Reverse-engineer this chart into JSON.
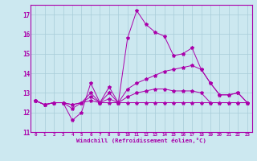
{
  "xlabel": "Windchill (Refroidissement éolien,°C)",
  "background_color": "#cce8f0",
  "grid_color": "#a8ccd8",
  "line_color": "#aa00aa",
  "xlim": [
    -0.5,
    23.5
  ],
  "ylim": [
    11,
    17.5
  ],
  "xticks": [
    0,
    1,
    2,
    3,
    4,
    5,
    6,
    7,
    8,
    9,
    10,
    11,
    12,
    13,
    14,
    15,
    16,
    17,
    18,
    19,
    20,
    21,
    22,
    23
  ],
  "yticks": [
    11,
    12,
    13,
    14,
    15,
    16,
    17
  ],
  "line1": [
    12.6,
    12.4,
    12.5,
    12.5,
    11.6,
    12.0,
    13.5,
    12.5,
    13.3,
    12.5,
    15.8,
    17.2,
    16.5,
    16.1,
    15.9,
    14.9,
    15.0,
    15.3,
    14.2,
    13.5,
    12.9,
    12.9,
    13.0,
    12.5
  ],
  "line2": [
    12.6,
    12.4,
    12.5,
    12.5,
    12.2,
    12.5,
    13.0,
    12.5,
    13.0,
    12.5,
    13.2,
    13.5,
    13.7,
    13.9,
    14.1,
    14.2,
    14.3,
    14.4,
    14.2,
    13.5,
    12.9,
    12.9,
    13.0,
    12.5
  ],
  "line3": [
    12.6,
    12.4,
    12.5,
    12.5,
    12.4,
    12.5,
    12.8,
    12.5,
    12.7,
    12.5,
    12.8,
    13.0,
    13.1,
    13.2,
    13.2,
    13.1,
    13.1,
    13.1,
    13.0,
    12.5,
    12.5,
    12.5,
    12.5,
    12.5
  ],
  "line4": [
    12.6,
    12.4,
    12.5,
    12.5,
    12.4,
    12.5,
    12.6,
    12.5,
    12.5,
    12.5,
    12.5,
    12.5,
    12.5,
    12.5,
    12.5,
    12.5,
    12.5,
    12.5,
    12.5,
    12.5,
    12.5,
    12.5,
    12.5,
    12.5
  ]
}
